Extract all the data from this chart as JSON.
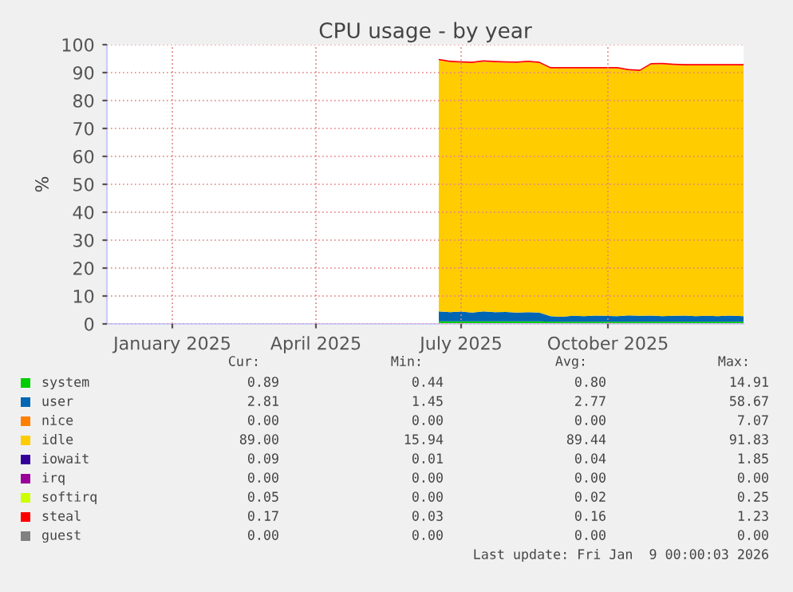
{
  "chart_data": {
    "type": "area",
    "stacked": true,
    "title": "CPU usage - by year",
    "ylabel": "%",
    "x": [
      "2025-07-01",
      "2025-07-08",
      "2025-07-15",
      "2025-07-22",
      "2025-07-29",
      "2025-08-05",
      "2025-08-12",
      "2025-08-19",
      "2025-08-26",
      "2025-09-02",
      "2025-09-09",
      "2025-09-16",
      "2025-09-23",
      "2025-09-30",
      "2025-10-07",
      "2025-10-14",
      "2025-10-21",
      "2025-10-28",
      "2025-11-04",
      "2025-11-11",
      "2025-11-18",
      "2025-11-25",
      "2025-12-02",
      "2025-12-09",
      "2025-12-16",
      "2025-12-23",
      "2025-12-30",
      "2026-01-08"
    ],
    "series": [
      {
        "name": "system",
        "color": "#00cc00",
        "values": [
          0.9,
          0.9,
          0.9,
          0.9,
          0.9,
          0.9,
          0.9,
          0.9,
          0.9,
          0.9,
          0.8,
          0.8,
          0.8,
          0.8,
          0.8,
          0.8,
          0.8,
          0.8,
          0.8,
          0.8,
          0.8,
          0.8,
          0.8,
          0.8,
          0.8,
          0.8,
          0.8,
          0.8
        ]
      },
      {
        "name": "user",
        "color": "#0066b3",
        "values": [
          3.6,
          3.3,
          3.5,
          3.2,
          3.6,
          3.3,
          3.4,
          3.2,
          3.3,
          3.2,
          2.0,
          1.8,
          2.1,
          2.0,
          2.2,
          2.1,
          2.0,
          2.3,
          2.1,
          2.2,
          2.0,
          2.1,
          2.2,
          2.0,
          2.1,
          2.0,
          2.2,
          2.0
        ]
      },
      {
        "name": "nice",
        "color": "#ff8000",
        "values": [
          null,
          null,
          null,
          null,
          null,
          null,
          null,
          null,
          null,
          null,
          null,
          null,
          null,
          null,
          null,
          null,
          null,
          null,
          null,
          null,
          null,
          null,
          null,
          null,
          null,
          null,
          null,
          null
        ]
      },
      {
        "name": "idle",
        "color": "#ffcc00",
        "values": [
          89.9,
          89.6,
          89.2,
          89.3,
          89.4,
          89.5,
          89.3,
          89.4,
          89.6,
          89.3,
          88.7,
          88.9,
          88.6,
          88.7,
          88.5,
          88.6,
          88.7,
          87.7,
          87.7,
          89.9,
          90.2,
          89.8,
          89.6,
          89.8,
          89.7,
          89.8,
          89.6,
          89.8
        ]
      },
      {
        "name": "iowait",
        "color": "#330099",
        "values": [
          null,
          null,
          null,
          null,
          null,
          null,
          null,
          null,
          null,
          null,
          null,
          null,
          null,
          null,
          null,
          null,
          null,
          null,
          null,
          null,
          null,
          null,
          null,
          null,
          null,
          null,
          null,
          null
        ]
      },
      {
        "name": "irq",
        "color": "#990099",
        "values": [
          null,
          null,
          null,
          null,
          null,
          null,
          null,
          null,
          null,
          null,
          null,
          null,
          null,
          null,
          null,
          null,
          null,
          null,
          null,
          null,
          null,
          null,
          null,
          null,
          null,
          null,
          null,
          null
        ]
      },
      {
        "name": "softirq",
        "color": "#ccff00",
        "values": [
          null,
          null,
          null,
          null,
          null,
          null,
          null,
          null,
          null,
          null,
          null,
          null,
          null,
          null,
          null,
          null,
          null,
          null,
          null,
          null,
          null,
          null,
          null,
          null,
          null,
          null,
          null,
          null
        ]
      },
      {
        "name": "steal",
        "color": "#ff0000",
        "values": [
          0.5,
          0.5,
          0.5,
          0.5,
          0.5,
          0.5,
          0.5,
          0.5,
          0.5,
          0.5,
          0.5,
          0.5,
          0.5,
          0.5,
          0.5,
          0.5,
          0.5,
          0.5,
          0.5,
          0.5,
          0.5,
          0.5,
          0.5,
          0.5,
          0.5,
          0.5,
          0.5,
          0.5
        ]
      },
      {
        "name": "guest",
        "color": "#808080",
        "values": [
          null,
          null,
          null,
          null,
          null,
          null,
          null,
          null,
          null,
          null,
          null,
          null,
          null,
          null,
          null,
          null,
          null,
          null,
          null,
          null,
          null,
          null,
          null,
          null,
          null,
          null,
          null,
          null
        ]
      }
    ],
    "xlim": [
      "2024-12-05",
      "2026-01-08"
    ],
    "xticks": [
      {
        "value": "2025-01-15",
        "label": "January 2025"
      },
      {
        "value": "2025-04-15",
        "label": "April 2025"
      },
      {
        "value": "2025-07-15",
        "label": "July 2025"
      },
      {
        "value": "2025-10-15",
        "label": "October 2025"
      }
    ],
    "ylim": [
      0,
      100
    ],
    "yticks": [
      0,
      10,
      20,
      30,
      40,
      50,
      60,
      70,
      80,
      90,
      100
    ],
    "grid": true,
    "legend": "bottom",
    "annotations": [
      "Cur:",
      "Min:",
      "Avg:",
      "Max:",
      "0.89",
      "0.44",
      "0.80",
      "14.91",
      "2.81",
      "1.45",
      "2.77",
      "58.67",
      "0.00",
      "0.00",
      "0.00",
      "7.07",
      "89.00",
      "15.94",
      "89.44",
      "91.83",
      "0.09",
      "0.01",
      "0.04",
      "1.85",
      "0.00",
      "0.00",
      "0.00",
      "0.00",
      "0.05",
      "0.00",
      "0.02",
      "0.25",
      "0.17",
      "0.03",
      "0.16",
      "1.23",
      "0.00",
      "0.00",
      "0.00",
      "0.00",
      "Last update: Fri Jan  9 00:00:03 2026"
    ]
  }
}
